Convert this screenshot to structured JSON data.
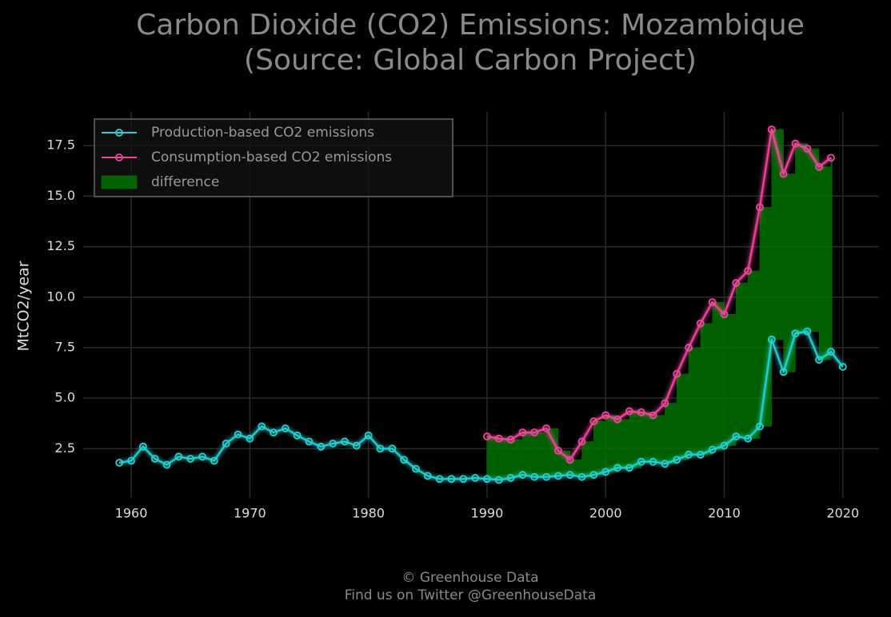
{
  "chart_data": {
    "type": "line",
    "title": "Carbon Dioxide (CO2) Emissions: Mozambique",
    "subtitle": "(Source: Global Carbon Project)",
    "ylabel": "MtCO2/year",
    "footer": [
      "© Greenhouse Data",
      "Find us on Twitter @GreenhouseData"
    ],
    "x": [
      1959,
      1960,
      1961,
      1962,
      1963,
      1964,
      1965,
      1966,
      1967,
      1968,
      1969,
      1970,
      1971,
      1972,
      1973,
      1974,
      1975,
      1976,
      1977,
      1978,
      1979,
      1980,
      1981,
      1982,
      1983,
      1984,
      1985,
      1986,
      1987,
      1988,
      1989,
      1990,
      1991,
      1992,
      1993,
      1994,
      1995,
      1996,
      1997,
      1998,
      1999,
      2000,
      2001,
      2002,
      2003,
      2004,
      2005,
      2006,
      2007,
      2008,
      2009,
      2010,
      2011,
      2012,
      2013,
      2014,
      2015,
      2016,
      2017,
      2018,
      2019,
      2020
    ],
    "series": [
      {
        "name": "Production-based CO2 emissions",
        "color": "#22d3d3",
        "values": [
          1.8,
          1.9,
          2.6,
          2.0,
          1.7,
          2.1,
          2.0,
          2.1,
          1.9,
          2.75,
          3.2,
          3.0,
          3.6,
          3.3,
          3.5,
          3.15,
          2.85,
          2.6,
          2.75,
          2.85,
          2.65,
          3.15,
          2.5,
          2.5,
          1.95,
          1.5,
          1.15,
          1.0,
          1.0,
          1.0,
          1.05,
          1.0,
          0.95,
          1.05,
          1.2,
          1.1,
          1.1,
          1.15,
          1.2,
          1.1,
          1.2,
          1.35,
          1.55,
          1.55,
          1.85,
          1.85,
          1.75,
          1.95,
          2.2,
          2.2,
          2.45,
          2.65,
          3.1,
          3.0,
          3.6,
          7.9,
          6.3,
          8.2,
          8.3,
          6.9,
          7.3,
          6.55
        ]
      },
      {
        "name": "Consumption-based CO2 emissions",
        "color": "#f0479b",
        "values": [
          null,
          null,
          null,
          null,
          null,
          null,
          null,
          null,
          null,
          null,
          null,
          null,
          null,
          null,
          null,
          null,
          null,
          null,
          null,
          null,
          null,
          null,
          null,
          null,
          null,
          null,
          null,
          null,
          null,
          null,
          null,
          3.1,
          3.0,
          2.95,
          3.3,
          3.3,
          3.5,
          2.4,
          1.95,
          2.85,
          3.85,
          4.15,
          3.95,
          4.35,
          4.3,
          4.15,
          4.75,
          6.2,
          7.5,
          8.7,
          9.75,
          9.15,
          10.7,
          11.3,
          14.45,
          18.3,
          16.1,
          17.6,
          17.35,
          16.45,
          16.9,
          null
        ]
      }
    ],
    "fill": {
      "name": "difference",
      "color": "#008000"
    },
    "xlim": [
      1955.95,
      2023.05
    ],
    "ylim": [
      0.06,
      19.17
    ],
    "xticks": [
      1960,
      1970,
      1980,
      1990,
      2000,
      2010,
      2020
    ],
    "yticks": [
      2.5,
      {
        "value": 5,
        "label": "5.0"
      },
      7.5,
      {
        "value": 10,
        "label": "10.0"
      },
      12.5,
      {
        "value": 15,
        "label": "15.0"
      },
      17.5
    ],
    "grid": true,
    "legend": "upper left"
  }
}
